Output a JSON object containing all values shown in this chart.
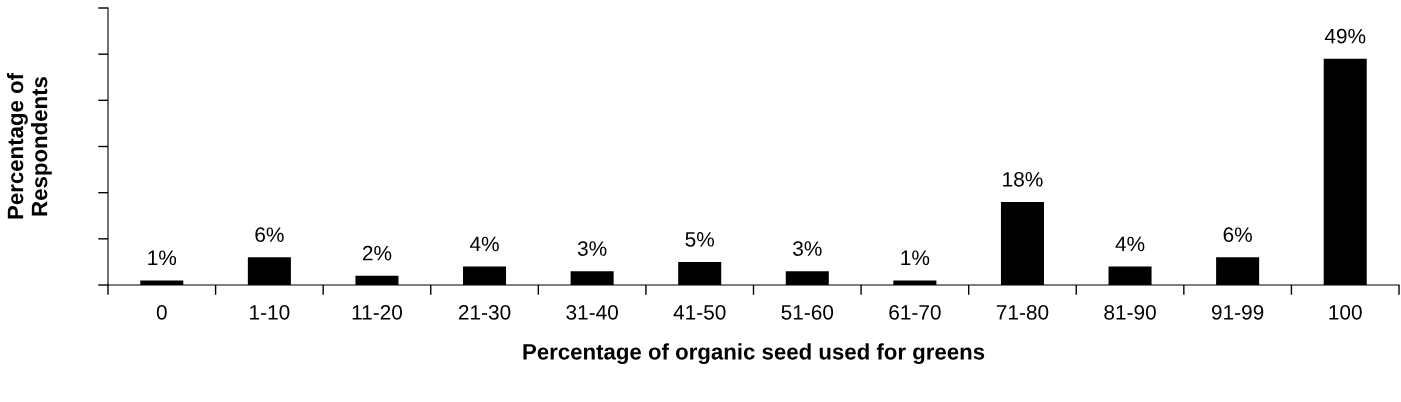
{
  "chart_data": {
    "type": "bar",
    "xlabel": "Percentage of organic seed used for greens",
    "ylabel": "Percentage of\nRespondents",
    "categories": [
      "0",
      "1-10",
      "11-20",
      "21-30",
      "31-40",
      "41-50",
      "51-60",
      "61-70",
      "71-80",
      "81-90",
      "91-99",
      "100"
    ],
    "values": [
      1,
      6,
      2,
      4,
      3,
      5,
      3,
      1,
      18,
      4,
      6,
      49
    ],
    "value_labels": [
      "1%",
      "6%",
      "2%",
      "4%",
      "3%",
      "5%",
      "3%",
      "1%",
      "18%",
      "4%",
      "6%",
      "49%"
    ],
    "color": "#000000",
    "ylim": [
      0,
      60
    ],
    "yticks": [
      {
        "value": 0,
        "label": null
      },
      {
        "value": 10,
        "label": null
      },
      {
        "value": 20,
        "label": null
      },
      {
        "value": 30,
        "label": null
      },
      {
        "value": 40,
        "label": null
      },
      {
        "value": 50,
        "label": null
      },
      {
        "value": 60,
        "label": null
      }
    ],
    "tick_labels": "x",
    "grid": false,
    "legend": false
  }
}
